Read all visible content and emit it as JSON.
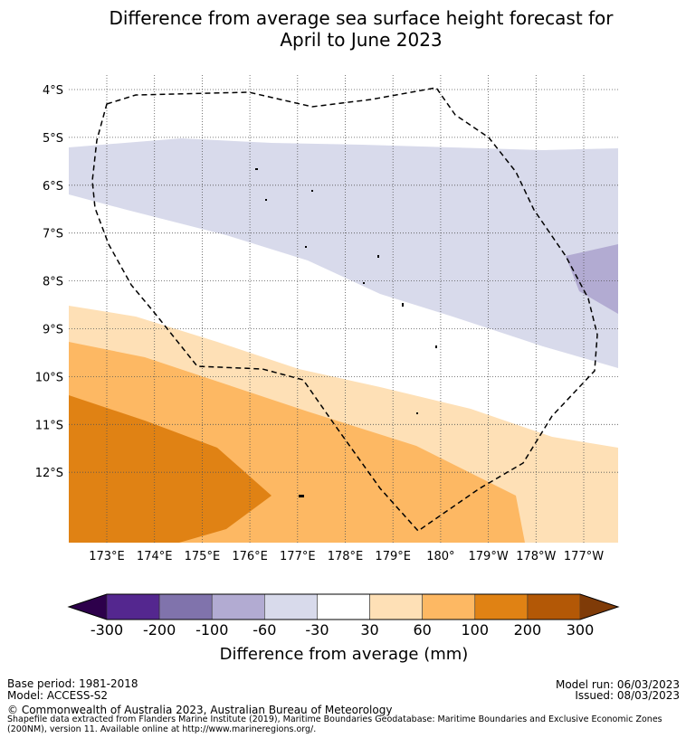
{
  "title": {
    "line1": "Difference from average sea surface height forecast for",
    "line2": "April to June 2023"
  },
  "map": {
    "lat_ticks": [
      "4°S",
      "5°S",
      "6°S",
      "7°S",
      "8°S",
      "9°S",
      "10°S",
      "11°S",
      "12°S"
    ],
    "lon_ticks": [
      "173°E",
      "174°E",
      "175°E",
      "176°E",
      "177°E",
      "178°E",
      "179°E",
      "180°",
      "179°W",
      "178°W",
      "177°W"
    ],
    "lat_range": [
      -13.4,
      -3.7
    ],
    "lon_range": [
      172.2,
      183.7
    ],
    "gridlines": true,
    "boundary_style": "dashed"
  },
  "colorbar": {
    "ticks": [
      "-300",
      "-200",
      "-100",
      "-60",
      "-30",
      "30",
      "60",
      "100",
      "200",
      "300"
    ],
    "colors": [
      "#54278f",
      "#8073ac",
      "#b2abd2",
      "#d8daeb",
      "#ffffff",
      "#fee0b6",
      "#fdb863",
      "#e08214",
      "#b35806"
    ],
    "under_color": "#2d004b",
    "over_color": "#7f3b08",
    "label": "Difference from average (mm)"
  },
  "footer": {
    "base_period": "Base period: 1981-2018",
    "model": "Model: ACCESS-S2",
    "model_run": "Model run: 06/03/2023",
    "issued": "Issued: 08/03/2023",
    "copyright": "© Commonwealth of Australia 2023, Australian Bureau of Meteorology",
    "shapefile_note": "Shapefile data extracted from Flanders Marine Institute (2019), Maritime Boundaries Geodatabase: Maritime Boundaries and Exclusive Economic Zones (200NM), version 11. Available online at http://www.marineregions.org/."
  }
}
